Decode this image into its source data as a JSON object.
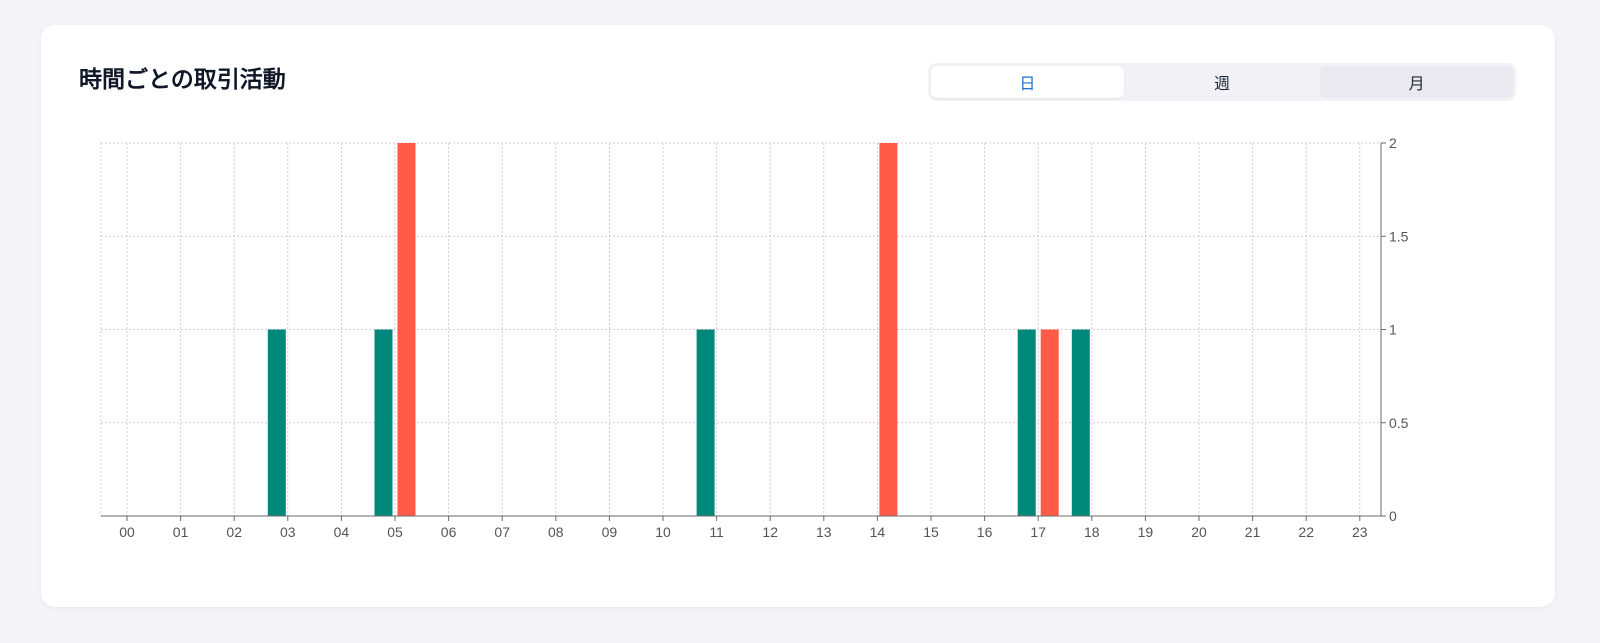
{
  "header": {
    "title": "時間ごとの取引活動"
  },
  "tabs": [
    {
      "label": "日",
      "active": true
    },
    {
      "label": "週",
      "active": false
    },
    {
      "label": "月",
      "active": false
    }
  ],
  "colors": {
    "series_a": "#00897b",
    "series_b": "#ff5a45",
    "grid": "#d8c8dc",
    "axis": "#6b6b6b",
    "tab_active_text": "#1e6fd0"
  },
  "chart_data": {
    "type": "bar",
    "categories": [
      "00",
      "01",
      "02",
      "03",
      "04",
      "05",
      "06",
      "07",
      "08",
      "09",
      "10",
      "11",
      "12",
      "13",
      "14",
      "15",
      "16",
      "17",
      "18",
      "19",
      "20",
      "21",
      "22",
      "23"
    ],
    "series": [
      {
        "color": "#00897b",
        "values": [
          0,
          0,
          0,
          1,
          0,
          1,
          0,
          0,
          0,
          0,
          0,
          1,
          0,
          0,
          0,
          0,
          0,
          1,
          1,
          0,
          0,
          0,
          0,
          0
        ]
      },
      {
        "color": "#ff5a45",
        "values": [
          0,
          0,
          0,
          0,
          0,
          2,
          0,
          0,
          0,
          0,
          0,
          0,
          0,
          0,
          2,
          0,
          0,
          1,
          0,
          0,
          0,
          0,
          0,
          0
        ]
      }
    ],
    "ylim": [
      0,
      2
    ],
    "yticks": [
      0,
      0.5,
      1,
      1.5,
      2
    ],
    "y_axis_side": "right",
    "grid": true,
    "xlabel": "",
    "ylabel": ""
  }
}
